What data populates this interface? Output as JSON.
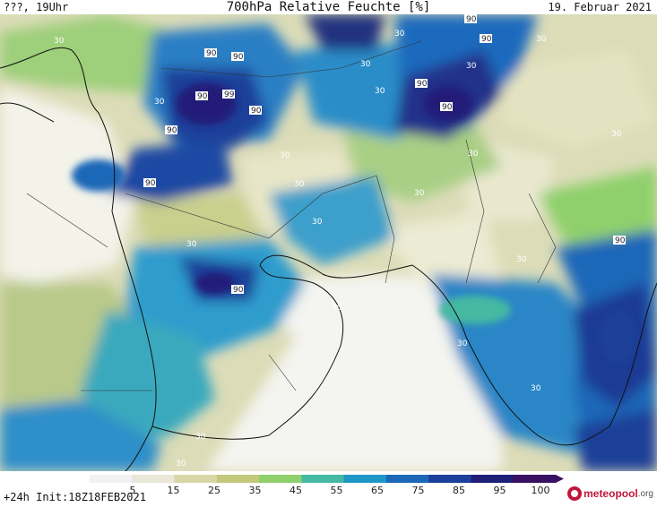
{
  "header": {
    "left": "???, 19Uhr",
    "title": "700hPa Relative Feuchte [%]",
    "right": "19. Februar 2021"
  },
  "footer": {
    "init": "+24h Init:18Z18FEB2021",
    "brand_name": "meteopool",
    "brand_tld": ".org"
  },
  "colorbar": {
    "ticks": [
      "5",
      "15",
      "25",
      "35",
      "45",
      "55",
      "65",
      "75",
      "85",
      "95",
      "100"
    ],
    "colors": [
      "#f2f2f2",
      "#e9e7d7",
      "#d8d6a6",
      "#c2c97a",
      "#8fd06c",
      "#45b9a2",
      "#1f98c8",
      "#1b68b8",
      "#1c3f9a",
      "#201f78",
      "#3a1060"
    ]
  },
  "contour_labels": {
    "c30": "30",
    "c90": "90",
    "c99": "99"
  }
}
